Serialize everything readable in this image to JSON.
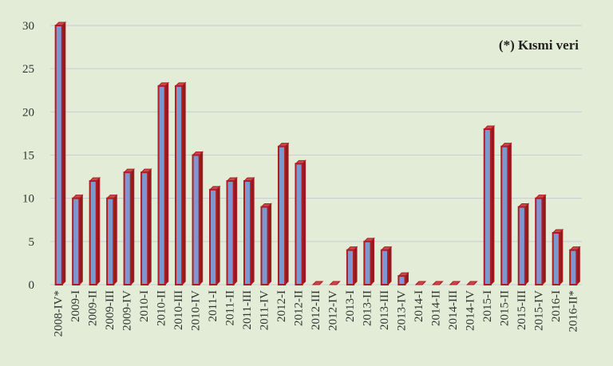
{
  "chart_data": {
    "type": "bar",
    "title": "",
    "xlabel": "",
    "ylabel": "",
    "ylim": [
      0,
      30
    ],
    "yticks": [
      0,
      5,
      10,
      15,
      20,
      25,
      30
    ],
    "grid": true,
    "annotation": "(*) Kısmi veri",
    "categories": [
      "2008-IV*",
      "2009-I",
      "2009-II",
      "2009-III",
      "2009-IV",
      "2010-I",
      "2010-II",
      "2010-III",
      "2010-IV",
      "2011-I",
      "2011-II",
      "2011-III",
      "2011-IV",
      "2012-I",
      "2012-II",
      "2012-III",
      "2012-IV",
      "2013-I",
      "2013-II",
      "2013-III",
      "2013-IV",
      "2014-I",
      "2014-II",
      "2014-III",
      "2014-IV",
      "2015-I",
      "2015-II",
      "2015-III",
      "2015-IV",
      "2016-I",
      "2016-II*"
    ],
    "values": [
      30,
      10,
      12,
      10,
      13,
      13,
      23,
      23,
      15,
      11,
      12,
      12,
      9,
      16,
      14,
      0,
      0,
      4,
      5,
      4,
      1,
      0,
      0,
      0,
      0,
      18,
      16,
      9,
      10,
      6,
      4
    ],
    "colors": {
      "bar_fill": "#7f97cf",
      "bar_edge": "#b01c22",
      "grid": "#c9cbd6",
      "background": "#e2ecd6"
    }
  }
}
